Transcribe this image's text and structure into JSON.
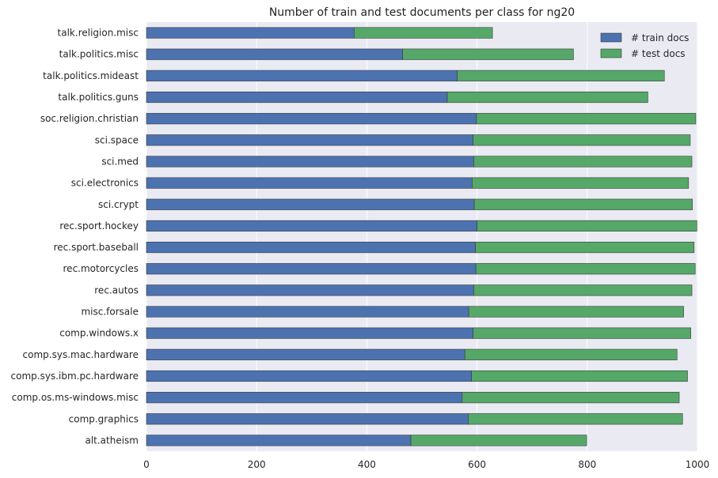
{
  "chart_data": {
    "type": "bar",
    "orientation": "horizontal",
    "stacked": true,
    "title": "Number of train and test documents per class for ng20",
    "xlabel": "",
    "ylabel": "",
    "xlim": [
      0,
      1000
    ],
    "xticks": [
      "0",
      "200",
      "400",
      "600",
      "800",
      "1000"
    ],
    "grid": true,
    "legend_position": "top-right",
    "categories": [
      "alt.atheism",
      "comp.graphics",
      "comp.os.ms-windows.misc",
      "comp.sys.ibm.pc.hardware",
      "comp.sys.mac.hardware",
      "comp.windows.x",
      "misc.forsale",
      "rec.autos",
      "rec.motorcycles",
      "rec.sport.baseball",
      "rec.sport.hockey",
      "sci.crypt",
      "sci.electronics",
      "sci.med",
      "sci.space",
      "soc.religion.christian",
      "talk.politics.guns",
      "talk.politics.mideast",
      "talk.politics.misc",
      "talk.religion.misc"
    ],
    "series": [
      {
        "name": "# train docs",
        "color": "#4c72b0",
        "values": [
          480,
          584,
          573,
          590,
          578,
          593,
          585,
          594,
          598,
          597,
          600,
          595,
          591,
          594,
          593,
          599,
          546,
          564,
          465,
          377
        ]
      },
      {
        "name": "# test docs",
        "color": "#55a868",
        "values": [
          319,
          389,
          394,
          392,
          385,
          395,
          390,
          396,
          398,
          397,
          399,
          396,
          393,
          396,
          394,
          398,
          364,
          376,
          310,
          251
        ]
      }
    ]
  }
}
